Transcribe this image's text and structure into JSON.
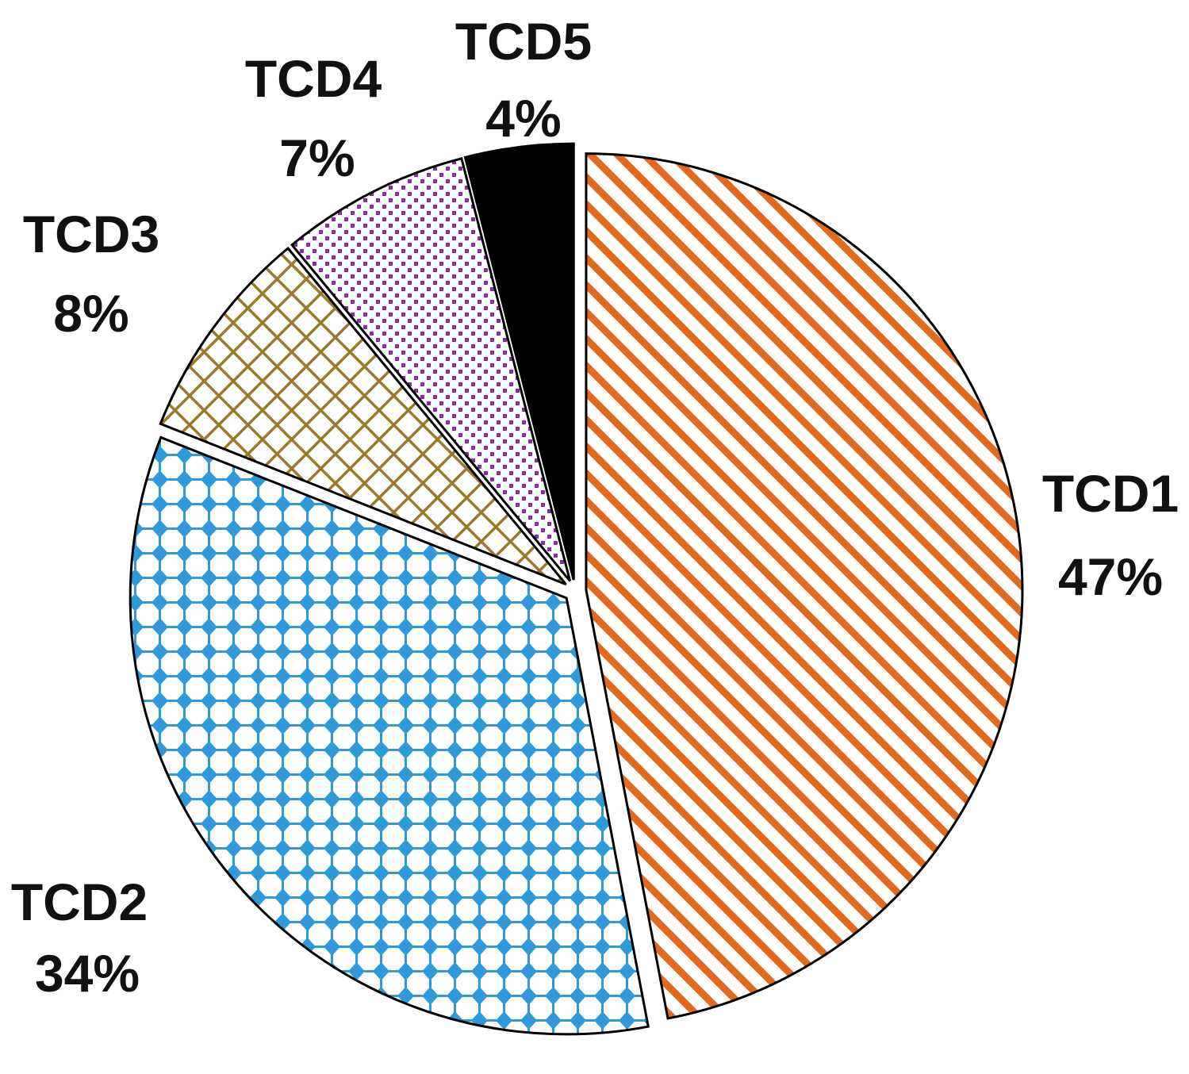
{
  "chart_data": {
    "type": "pie",
    "title": "",
    "categories": [
      "TCD1",
      "TCD2",
      "TCD3",
      "TCD4",
      "TCD5"
    ],
    "values": [
      47,
      34,
      8,
      7,
      4
    ],
    "value_labels": [
      "47%",
      "34%",
      "8%",
      "7%",
      "4%"
    ],
    "patterns": [
      "diagonal-stripes",
      "diamond-dots",
      "crosshatch-grid",
      "small-dots",
      "solid"
    ],
    "colors": [
      "#e3691d",
      "#2e9ad9",
      "#9a7a2a",
      "#8e2aa6",
      "#000000"
    ],
    "exploded": true,
    "legend": "none"
  }
}
